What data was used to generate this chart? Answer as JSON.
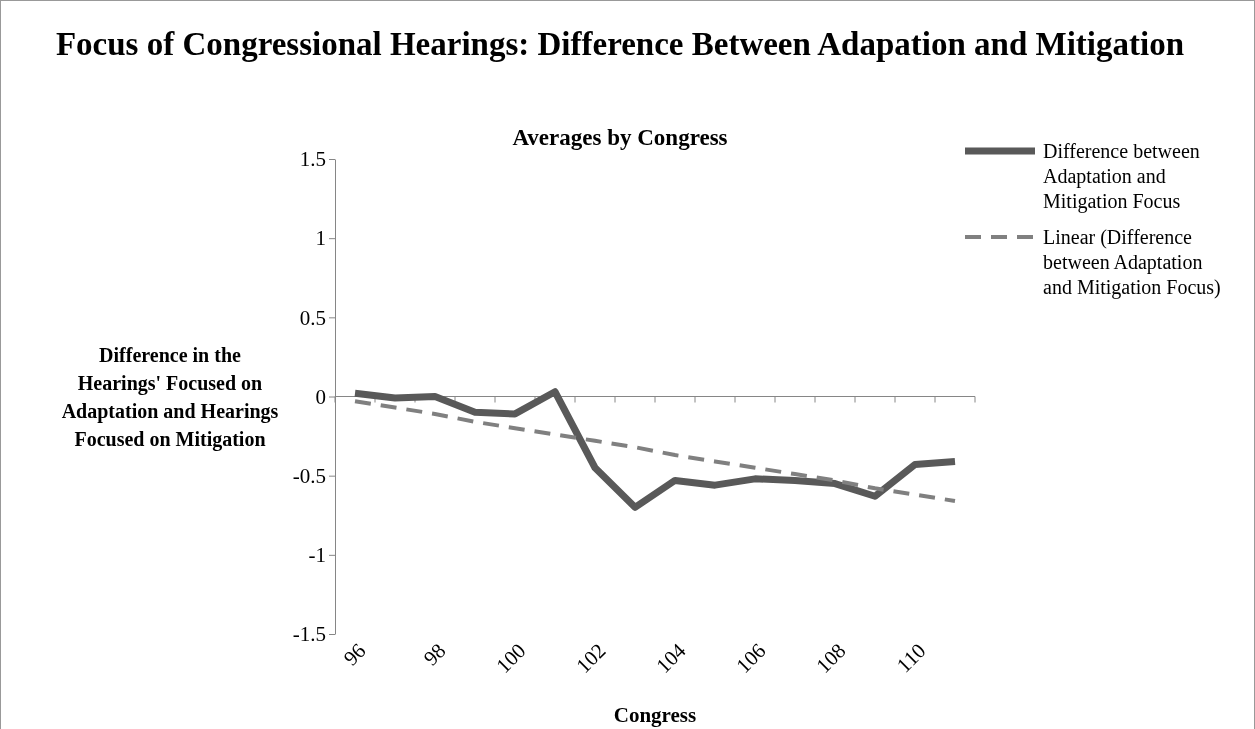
{
  "chart_data": {
    "type": "line",
    "title": "Focus of Congressional Hearings: Difference Between Adapation and Mitigation",
    "subtitle": "Averages by Congress",
    "xlabel": "Congress",
    "ylabel": "Difference in the Hearings' Focused on Adaptation and Hearings Focused on Mitigation",
    "categories": [
      "96",
      null,
      "98",
      null,
      "100",
      null,
      "102",
      null,
      "104",
      null,
      "106",
      null,
      "108",
      null,
      "110",
      null
    ],
    "ylim": [
      -1.5,
      1.5
    ],
    "yticks": [
      {
        "value": -1.5,
        "label": "-1.5"
      },
      {
        "value": -1,
        "label": "-1"
      },
      {
        "value": -0.5,
        "label": "-0.5"
      },
      {
        "value": 0,
        "label": "0"
      },
      {
        "value": 0.5,
        "label": "0.5"
      },
      {
        "value": 1,
        "label": "1"
      },
      {
        "value": 1.5,
        "label": "1.5"
      }
    ],
    "legend": "right",
    "marker": "none",
    "series": [
      {
        "name": "Difference between Adaptation and Mitigation Focus",
        "color": "#595959",
        "line_style": "solid",
        "values": [
          0.02,
          -0.01,
          0.0,
          -0.1,
          -0.11,
          0.03,
          -0.45,
          -0.7,
          -0.53,
          -0.56,
          -0.52,
          -0.53,
          -0.55,
          -0.63,
          -0.43,
          -0.41
        ]
      },
      {
        "name": "Linear (Difference between Adaptation and Mitigation Focus)",
        "color": "#808080",
        "line_style": "dashed",
        "values": [
          -0.03,
          -0.07,
          -0.11,
          -0.16,
          -0.2,
          -0.24,
          -0.28,
          -0.32,
          -0.37,
          -0.41,
          -0.45,
          -0.49,
          -0.53,
          -0.58,
          -0.62,
          -0.66
        ]
      }
    ]
  }
}
